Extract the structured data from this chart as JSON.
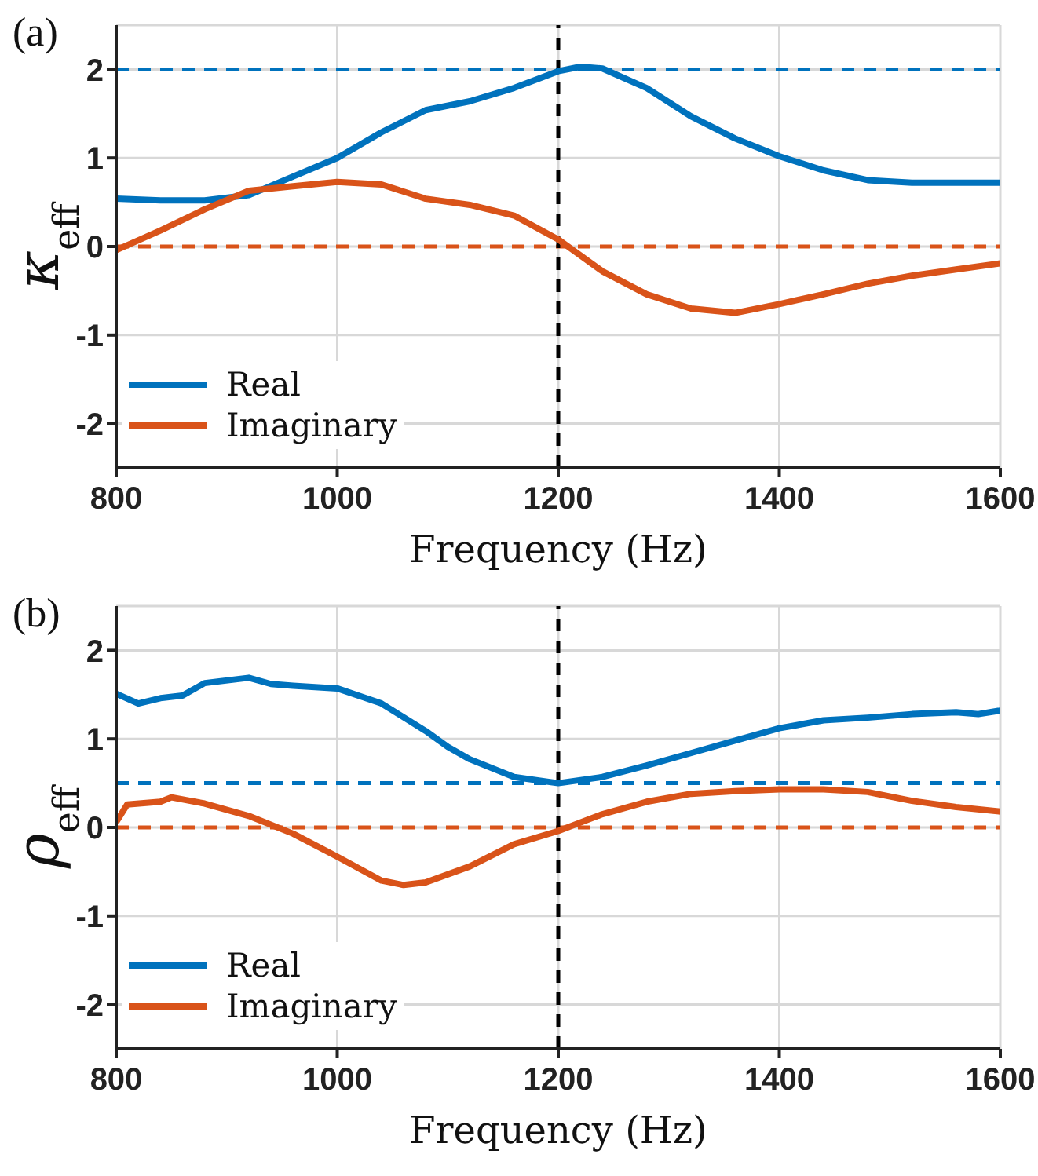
{
  "chart_data": [
    {
      "type": "line",
      "title": "(a)",
      "xlabel": "Frequency (Hz)",
      "ylabel": "κ$_{eff}$",
      "xlim": [
        800,
        1600
      ],
      "xticks": [
        800,
        1000,
        1200,
        1400,
        1600
      ],
      "ylim": [
        -2.5,
        2.5
      ],
      "yticks": [
        -2,
        -1,
        0,
        1,
        2
      ],
      "grid": true,
      "legend": "bottom left",
      "line_style": "solid",
      "series": [
        {
          "name": "Real",
          "color": "#0072bd",
          "x": [
            800,
            840,
            880,
            920,
            960,
            1000,
            1040,
            1080,
            1120,
            1160,
            1200,
            1220,
            1240,
            1280,
            1320,
            1360,
            1400,
            1440,
            1480,
            1520,
            1560,
            1600
          ],
          "values": [
            0.54,
            0.52,
            0.52,
            0.58,
            0.79,
            1.0,
            1.29,
            1.54,
            1.64,
            1.79,
            1.98,
            2.03,
            2.01,
            1.79,
            1.47,
            1.22,
            1.02,
            0.86,
            0.75,
            0.72,
            0.72,
            0.72
          ]
        },
        {
          "name": "Imaginary",
          "color": "#d95319",
          "x": [
            800,
            840,
            880,
            920,
            960,
            1000,
            1040,
            1080,
            1120,
            1160,
            1200,
            1240,
            1280,
            1320,
            1360,
            1400,
            1440,
            1480,
            1520,
            1560,
            1600
          ],
          "values": [
            -0.04,
            0.18,
            0.42,
            0.63,
            0.68,
            0.73,
            0.7,
            0.54,
            0.47,
            0.35,
            0.08,
            -0.28,
            -0.54,
            -0.7,
            -0.75,
            -0.65,
            -0.54,
            -0.42,
            -0.33,
            -0.26,
            -0.19
          ]
        }
      ],
      "ref_lines": [
        {
          "axis": "y",
          "value": 2,
          "color": "#0072bd",
          "line_style": "dashed"
        },
        {
          "axis": "y",
          "value": 0,
          "color": "#d95319",
          "line_style": "dashed"
        },
        {
          "axis": "x",
          "value": 1200,
          "color": "#000000",
          "line_style": "dashed"
        }
      ]
    },
    {
      "type": "line",
      "title": "(b)",
      "xlabel": "Frequency (Hz)",
      "ylabel": "ρ$_{eff}$",
      "xlim": [
        800,
        1600
      ],
      "xticks": [
        800,
        1000,
        1200,
        1400,
        1600
      ],
      "ylim": [
        -2.5,
        2.5
      ],
      "yticks": [
        -2,
        -1,
        0,
        1,
        2
      ],
      "grid": true,
      "legend": "bottom left",
      "line_style": "solid",
      "series": [
        {
          "name": "Real",
          "color": "#0072bd",
          "x": [
            800,
            820,
            840,
            860,
            880,
            920,
            940,
            960,
            1000,
            1040,
            1080,
            1100,
            1120,
            1160,
            1200,
            1240,
            1280,
            1320,
            1360,
            1400,
            1440,
            1480,
            1520,
            1560,
            1580,
            1600
          ],
          "values": [
            1.51,
            1.4,
            1.46,
            1.49,
            1.63,
            1.69,
            1.62,
            1.6,
            1.57,
            1.4,
            1.09,
            0.91,
            0.77,
            0.57,
            0.5,
            0.57,
            0.7,
            0.84,
            0.98,
            1.12,
            1.21,
            1.24,
            1.28,
            1.3,
            1.28,
            1.32
          ]
        },
        {
          "name": "Imaginary",
          "color": "#d95319",
          "x": [
            800,
            810,
            840,
            850,
            880,
            920,
            960,
            1000,
            1040,
            1060,
            1080,
            1120,
            1160,
            1200,
            1240,
            1280,
            1320,
            1360,
            1400,
            1440,
            1480,
            1520,
            1560,
            1600
          ],
          "values": [
            0.06,
            0.26,
            0.29,
            0.34,
            0.27,
            0.13,
            -0.07,
            -0.33,
            -0.6,
            -0.65,
            -0.62,
            -0.44,
            -0.19,
            -0.04,
            0.15,
            0.29,
            0.38,
            0.41,
            0.43,
            0.43,
            0.4,
            0.3,
            0.23,
            0.18
          ]
        }
      ],
      "ref_lines": [
        {
          "axis": "y",
          "value": 0.5,
          "color": "#0072bd",
          "line_style": "dashed"
        },
        {
          "axis": "y",
          "value": 0,
          "color": "#d95319",
          "line_style": "dashed"
        },
        {
          "axis": "x",
          "value": 1200,
          "color": "#000000",
          "line_style": "dashed"
        }
      ]
    }
  ]
}
